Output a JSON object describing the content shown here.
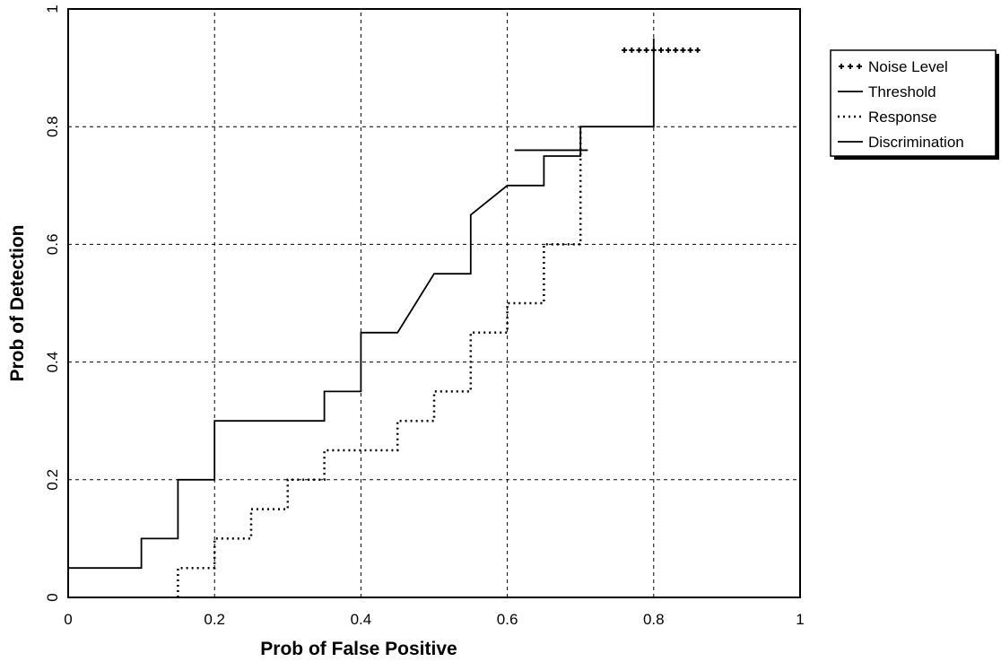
{
  "chart_data": {
    "type": "line",
    "title": "",
    "xlabel": "Prob of False Positive",
    "ylabel": "Prob of Detection",
    "xlim": [
      0,
      1
    ],
    "ylim": [
      0,
      1
    ],
    "x_ticks": [
      0,
      0.2,
      0.4,
      0.6,
      0.8,
      1
    ],
    "x_tick_labels": [
      "0",
      "0.2",
      "0.4",
      "0.6",
      "0.8",
      "1"
    ],
    "y_ticks": [
      0,
      0.2,
      0.4,
      0.6,
      0.8,
      1
    ],
    "y_tick_labels": [
      "0",
      "0.2",
      "0.4",
      "0.6",
      "0.8",
      "1"
    ],
    "grid": true,
    "legend_position": "top-right outside plot",
    "series": [
      {
        "name": "Noise Level",
        "style": "plus-markers",
        "x": [
          0.76,
          0.77,
          0.78,
          0.79,
          0.8,
          0.81,
          0.82,
          0.83,
          0.84,
          0.85,
          0.86
        ],
        "y": [
          0.93,
          0.93,
          0.93,
          0.93,
          0.93,
          0.93,
          0.93,
          0.93,
          0.93,
          0.93,
          0.93
        ]
      },
      {
        "name": "Threshold",
        "style": "solid",
        "x": [
          0.61,
          0.71
        ],
        "y": [
          0.76,
          0.76
        ]
      },
      {
        "name": "Response",
        "style": "dotted",
        "x": [
          0.15,
          0.15,
          0.2,
          0.2,
          0.25,
          0.25,
          0.3,
          0.3,
          0.35,
          0.35,
          0.4,
          0.4,
          0.45,
          0.45,
          0.5,
          0.5,
          0.55,
          0.55,
          0.6,
          0.6,
          0.65,
          0.65,
          0.7,
          0.7
        ],
        "y": [
          0,
          0.05,
          0.05,
          0.1,
          0.1,
          0.15,
          0.15,
          0.2,
          0.2,
          0.25,
          0.25,
          0.25,
          0.25,
          0.3,
          0.3,
          0.35,
          0.35,
          0.45,
          0.45,
          0.5,
          0.5,
          0.6,
          0.6,
          0.8
        ]
      },
      {
        "name": "Discrimination",
        "style": "solid",
        "x": [
          0,
          0.1,
          0.1,
          0.15,
          0.15,
          0.2,
          0.2,
          0.35,
          0.35,
          0.4,
          0.4,
          0.45,
          0.5,
          0.55,
          0.55,
          0.6,
          0.65,
          0.65,
          0.7,
          0.7,
          0.8,
          0.8
        ],
        "y": [
          0.05,
          0.05,
          0.1,
          0.1,
          0.2,
          0.2,
          0.3,
          0.3,
          0.35,
          0.35,
          0.45,
          0.45,
          0.55,
          0.55,
          0.65,
          0.7,
          0.7,
          0.75,
          0.75,
          0.8,
          0.8,
          0.95
        ]
      }
    ]
  }
}
